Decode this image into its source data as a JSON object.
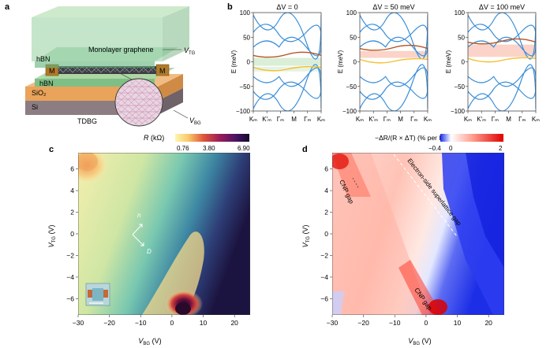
{
  "panels": {
    "a": {
      "letter": "a",
      "layers": {
        "hbn_top": "hBN",
        "metal": "M",
        "hbn_bottom": "hBN",
        "sio2": "SiO₂",
        "si": "Si"
      },
      "graphene_label": "Monolayer graphene",
      "vtg_label": "V",
      "vtg_sub": "TG",
      "vbg_label": "V",
      "vbg_sub": "BG",
      "tdbg_label": "TDBG"
    },
    "b": {
      "letter": "b",
      "ylabel": "E (meV)",
      "yticks": [
        "100",
        "50",
        "0",
        "−50",
        "−100"
      ],
      "ylim": [
        -100,
        100
      ],
      "xticks": [
        "Kₘ",
        "K′ₘ",
        "Γₘ",
        "M",
        "Γₘ",
        "Kₘ"
      ],
      "subplots": [
        {
          "title": "ΔV = 0",
          "gap": [
            -8,
            8
          ]
        },
        {
          "title": "ΔV = 50 meV",
          "gap": [
            8,
            22
          ]
        },
        {
          "title": "ΔV = 100 meV",
          "gap": [
            10,
            35
          ]
        }
      ]
    },
    "c": {
      "letter": "c",
      "colorbar_title": "R (kΩ)",
      "colorbar_ticks": [
        "0.76",
        "3.80",
        "6.90"
      ],
      "xlabel": "V",
      "xlabel_sub": "BG",
      "xlabel_unit": " (V)",
      "ylabel": "V",
      "ylabel_sub": "TG",
      "ylabel_unit": " (V)",
      "xticks": [
        "−30",
        "−20",
        "−10",
        "0",
        "10",
        "20"
      ],
      "yticks": [
        "6",
        "4",
        "2",
        "0",
        "−2",
        "−4",
        "−6"
      ],
      "arrow_labels": {
        "n": "n",
        "d": "D"
      }
    },
    "d": {
      "letter": "d",
      "colorbar_title": "−ΔR/(R × ΔT) (% per K)",
      "colorbar_ticks": [
        "−0.4",
        "0",
        "2"
      ],
      "xlabel": "V",
      "xlabel_sub": "BG",
      "xlabel_unit": " (V)",
      "ylabel": "V",
      "ylabel_sub": "TG",
      "ylabel_unit": " (V)",
      "xticks": [
        "−30",
        "−20",
        "−10",
        "0",
        "10",
        "20"
      ],
      "yticks": [
        "6",
        "4",
        "2",
        "0",
        "−2",
        "−4",
        "−6"
      ],
      "annotations": {
        "cnp_top": "CNP gap",
        "cnp_bottom": "CNP gap",
        "superlattice": "Electron-side superlattice gap"
      }
    }
  },
  "chart_data": [
    {
      "type": "line",
      "title": "ΔV = 0",
      "xticks": [
        "Kₘ",
        "K′ₘ",
        "Γₘ",
        "M",
        "Γₘ",
        "Kₘ"
      ],
      "ylabel": "E (meV)",
      "ylim": [
        -100,
        100
      ]
    },
    {
      "type": "line",
      "title": "ΔV = 50 meV",
      "xticks": [
        "Kₘ",
        "K′ₘ",
        "Γₘ",
        "M",
        "Γₘ",
        "Kₘ"
      ],
      "ylabel": "E (meV)",
      "ylim": [
        -100,
        100
      ]
    },
    {
      "type": "line",
      "title": "ΔV = 100 meV",
      "xticks": [
        "Kₘ",
        "K′ₘ",
        "Γₘ",
        "M",
        "Γₘ",
        "Kₘ"
      ],
      "ylabel": "E (meV)",
      "ylim": [
        -100,
        100
      ]
    },
    {
      "type": "heatmap",
      "title": "R (kΩ)",
      "xlim": [
        -30,
        25
      ],
      "ylim": [
        -7.5,
        7.5
      ],
      "zlim": [
        0.76,
        6.9
      ],
      "xticks": [
        -30,
        -20,
        -10,
        0,
        10,
        20
      ],
      "yticks": [
        -6,
        -4,
        -2,
        0,
        2,
        4,
        6
      ]
    },
    {
      "type": "heatmap",
      "title": "−ΔR/(R × ΔT) (% per K)",
      "xlim": [
        -30,
        25
      ],
      "ylim": [
        -7.5,
        7.5
      ],
      "zlim": [
        -0.4,
        2
      ],
      "xticks": [
        -30,
        -20,
        -10,
        0,
        10,
        20
      ],
      "yticks": [
        -6,
        -4,
        -2,
        0,
        2,
        4,
        6
      ]
    }
  ]
}
